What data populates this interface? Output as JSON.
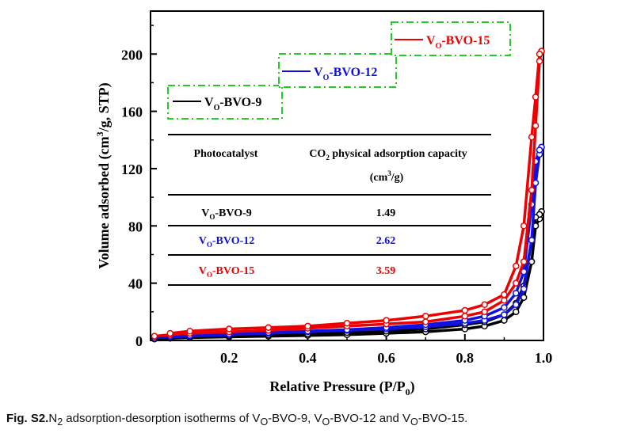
{
  "chart_data": {
    "type": "line",
    "xlabel": "Relative Pressure (P/P",
    "xlabel_sub": "0",
    "xlabel_end": ")",
    "ylabel": "Volume adsorbed (cm",
    "ylabel_sup": "3",
    "ylabel_end": "/g, STP)",
    "xlim": [
      0.0,
      1.0
    ],
    "ylim": [
      0,
      230
    ],
    "xticks": [
      "0.2",
      "0.4",
      "0.6",
      "0.8",
      "1.0"
    ],
    "xtick_values": [
      0.2,
      0.4,
      0.6,
      0.8,
      1.0
    ],
    "yticks": [
      "0",
      "40",
      "80",
      "120",
      "160",
      "200"
    ],
    "ytick_values": [
      0,
      40,
      80,
      120,
      160,
      200
    ],
    "series": [
      {
        "name": "VO-BVO-9",
        "label_main": "V",
        "label_sub": "O",
        "label_rest": "-BVO-9",
        "color": "#000000",
        "adsorption": {
          "x": [
            0.01,
            0.05,
            0.1,
            0.2,
            0.3,
            0.4,
            0.5,
            0.6,
            0.7,
            0.8,
            0.85,
            0.9,
            0.93,
            0.95,
            0.97,
            0.98,
            0.99,
            0.995
          ],
          "y": [
            1,
            1.5,
            2,
            2.5,
            3,
            3.5,
            4,
            5,
            6,
            8,
            10,
            14,
            20,
            30,
            55,
            80,
            85,
            90
          ]
        },
        "desorption": {
          "x": [
            0.995,
            0.99,
            0.98,
            0.97,
            0.95,
            0.93,
            0.9,
            0.85,
            0.8,
            0.7,
            0.6,
            0.5,
            0.4,
            0.3,
            0.2,
            0.1,
            0.05
          ],
          "y": [
            90,
            88,
            86,
            70,
            38,
            26,
            18,
            13,
            11,
            8,
            6.5,
            5.5,
            4.5,
            3.8,
            3.2,
            2.5,
            2
          ]
        }
      },
      {
        "name": "VO-BVO-12",
        "label_main": "V",
        "label_sub": "O",
        "label_rest": "-BVO-12",
        "color": "#1010e0",
        "adsorption": {
          "x": [
            0.01,
            0.05,
            0.1,
            0.2,
            0.3,
            0.4,
            0.5,
            0.6,
            0.7,
            0.8,
            0.85,
            0.9,
            0.93,
            0.95,
            0.97,
            0.98,
            0.99,
            0.995
          ],
          "y": [
            2,
            2.5,
            3,
            4,
            5,
            6,
            7,
            8,
            9.5,
            12,
            14,
            18,
            25,
            36,
            70,
            110,
            130,
            135
          ]
        },
        "desorption": {
          "x": [
            0.995,
            0.99,
            0.98,
            0.97,
            0.95,
            0.93,
            0.9,
            0.85,
            0.8,
            0.7,
            0.6,
            0.5,
            0.4,
            0.3,
            0.2,
            0.1,
            0.05
          ],
          "y": [
            135,
            133,
            125,
            95,
            48,
            33,
            23,
            17,
            14,
            11,
            9,
            7.5,
            6.5,
            5.5,
            4.5,
            3.5,
            3
          ]
        }
      },
      {
        "name": "VO-BVO-15",
        "label_main": "V",
        "label_sub": "O",
        "label_rest": "-BVO-15",
        "color": "#ee0000",
        "adsorption": {
          "x": [
            0.01,
            0.05,
            0.1,
            0.2,
            0.3,
            0.4,
            0.5,
            0.6,
            0.7,
            0.8,
            0.85,
            0.9,
            0.93,
            0.95,
            0.97,
            0.98,
            0.99,
            0.995
          ],
          "y": [
            3,
            4,
            5,
            6,
            7,
            8.5,
            10,
            11.5,
            13,
            17,
            20,
            28,
            40,
            55,
            105,
            150,
            195,
            202
          ]
        },
        "desorption": {
          "x": [
            0.995,
            0.99,
            0.98,
            0.97,
            0.95,
            0.93,
            0.9,
            0.85,
            0.8,
            0.7,
            0.6,
            0.5,
            0.4,
            0.3,
            0.2,
            0.1,
            0.05
          ],
          "y": [
            202,
            200,
            170,
            142,
            80,
            52,
            32,
            25,
            21,
            17,
            14,
            12,
            10,
            9,
            8,
            6.5,
            5
          ]
        }
      }
    ],
    "table": {
      "header_col1": "Photocatalyst",
      "header_col2_pre": "CO",
      "header_col2_sub": "2",
      "header_col2_post": " physical adsorption capacity",
      "header_units_pre": "(cm",
      "header_units_sup": "3",
      "header_units_post": "/g)",
      "rows": [
        {
          "main": "V",
          "sub": "O",
          "rest": "-BVO-9",
          "value": "1.49",
          "color": "#000000"
        },
        {
          "main": "V",
          "sub": "O",
          "rest": "-BVO-12",
          "value": "2.62",
          "color": "#1010e0"
        },
        {
          "main": "V",
          "sub": "O",
          "rest": "-BVO-15",
          "value": "3.59",
          "color": "#ee0000"
        }
      ]
    },
    "legend_box_color": "#22cc22"
  },
  "caption": {
    "label": "Fig. S2.",
    "t1": "N",
    "s1": "2",
    "t2": " adsorption-desorption isotherms of V",
    "s2": "O",
    "t3": "-BVO-9, V",
    "s3": "O",
    "t4": "-BVO-12 and V",
    "s4": "O",
    "t5": "-BVO-15."
  }
}
